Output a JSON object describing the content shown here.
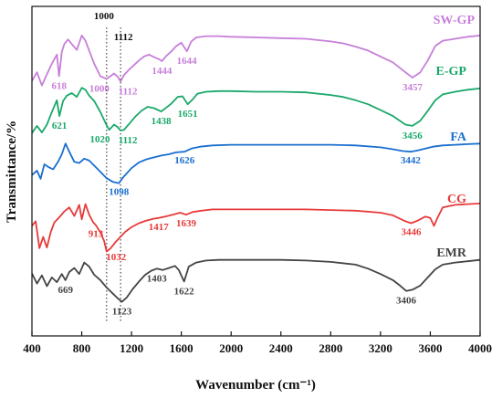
{
  "chart_data": {
    "type": "line",
    "xlabel": "Wavenumber (cm⁻¹)",
    "ylabel": "Transmittance/%",
    "xlim": [
      400,
      4000
    ],
    "xticks": [
      "400",
      "800",
      "1200",
      "1600",
      "2000",
      "2400",
      "2800",
      "3200",
      "3600",
      "4000"
    ],
    "grid": false,
    "reference_lines": [
      {
        "x": 1000,
        "label": "1000"
      },
      {
        "x": 1112,
        "label": "1112"
      }
    ],
    "series": [
      {
        "name": "SW-GP",
        "color": "#c77fd8",
        "x": [
          400,
          440,
          480,
          520,
          560,
          600,
          618,
          640,
          660,
          690,
          720,
          760,
          800,
          830,
          860,
          900,
          950,
          1000,
          1030,
          1060,
          1090,
          1112,
          1140,
          1180,
          1220,
          1260,
          1300,
          1340,
          1380,
          1420,
          1444,
          1480,
          1520,
          1560,
          1600,
          1644,
          1680,
          1720,
          1800,
          1900,
          2000,
          2200,
          2400,
          2600,
          2800,
          2900,
          3000,
          3100,
          3200,
          3300,
          3400,
          3457,
          3520,
          3580,
          3640,
          3700,
          3800,
          3900,
          4000
        ],
        "y": [
          0.2,
          1.5,
          -0.5,
          1.2,
          2.8,
          4.2,
          0.9,
          4.6,
          5.8,
          6.5,
          5.8,
          4.9,
          7.1,
          6.3,
          4.8,
          2.8,
          0.9,
          0.5,
          0.9,
          1.3,
          0.8,
          0.1,
          1.1,
          1.9,
          2.6,
          3.3,
          3.9,
          4.2,
          3.8,
          3.5,
          3.2,
          4.0,
          4.7,
          5.5,
          6.0,
          4.7,
          6.2,
          6.8,
          7.0,
          7.0,
          6.9,
          6.8,
          6.7,
          6.6,
          6.2,
          5.9,
          5.4,
          4.8,
          3.9,
          3.0,
          1.5,
          0.7,
          1.5,
          3.3,
          5.5,
          6.3,
          6.6,
          6.9,
          7.1
        ]
      },
      {
        "name": "E-GP",
        "color": "#1aa86a",
        "x": [
          400,
          440,
          480,
          520,
          560,
          600,
          621,
          650,
          680,
          720,
          760,
          800,
          830,
          860,
          900,
          950,
          1000,
          1020,
          1060,
          1090,
          1112,
          1140,
          1180,
          1230,
          1280,
          1330,
          1380,
          1438,
          1480,
          1520,
          1570,
          1610,
          1651,
          1690,
          1730,
          1800,
          1900,
          2000,
          2200,
          2400,
          2600,
          2800,
          2900,
          3000,
          3100,
          3200,
          3300,
          3400,
          3456,
          3520,
          3580,
          3640,
          3700,
          3800,
          3900,
          4000
        ],
        "y": [
          0.3,
          1.4,
          0.4,
          1.6,
          3.5,
          5.3,
          2.9,
          5.2,
          6.0,
          6.4,
          5.8,
          7.2,
          6.9,
          6.0,
          5.2,
          3.5,
          1.5,
          0.8,
          1.6,
          1.2,
          0.7,
          0.8,
          1.7,
          2.8,
          3.7,
          4.3,
          4.1,
          3.6,
          4.2,
          4.8,
          5.8,
          5.9,
          4.7,
          5.4,
          6.3,
          6.6,
          6.7,
          6.7,
          6.6,
          6.6,
          6.5,
          6.1,
          5.8,
          5.3,
          4.7,
          3.8,
          2.9,
          1.6,
          1.4,
          2.2,
          3.7,
          5.3,
          6.2,
          6.6,
          6.9,
          7.1
        ]
      },
      {
        "name": "FA",
        "color": "#1a6fd0",
        "x": [
          400,
          440,
          470,
          500,
          530,
          570,
          610,
          640,
          670,
          700,
          740,
          780,
          820,
          860,
          900,
          950,
          1000,
          1050,
          1098,
          1140,
          1200,
          1260,
          1320,
          1380,
          1440,
          1500,
          1560,
          1626,
          1680,
          1750,
          1850,
          2000,
          2200,
          2400,
          2600,
          2800,
          3000,
          3200,
          3300,
          3380,
          3442,
          3500,
          3560,
          3620,
          3700,
          3800,
          3900,
          4000
        ],
        "y": [
          2.5,
          3.2,
          1.9,
          4.2,
          3.8,
          3.4,
          4.6,
          5.8,
          7.5,
          6.2,
          4.6,
          4.4,
          5.1,
          4.8,
          4.0,
          3.0,
          2.0,
          1.4,
          1.2,
          2.3,
          3.6,
          4.5,
          5.0,
          5.3,
          5.6,
          5.8,
          6.1,
          6.2,
          6.7,
          7.0,
          7.2,
          7.3,
          7.3,
          7.3,
          7.3,
          7.3,
          7.2,
          6.9,
          6.6,
          6.3,
          6.2,
          6.4,
          6.7,
          7.0,
          7.2,
          7.3,
          7.4,
          7.5
        ]
      },
      {
        "name": "CG",
        "color": "#e83a3a",
        "x": [
          400,
          430,
          460,
          490,
          520,
          550,
          580,
          620,
          660,
          700,
          740,
          780,
          800,
          830,
          860,
          890,
          913,
          950,
          980,
          1000,
          1032,
          1070,
          1110,
          1150,
          1200,
          1260,
          1320,
          1380,
          1417,
          1470,
          1530,
          1590,
          1639,
          1690,
          1760,
          1850,
          2000,
          2200,
          2400,
          2600,
          2800,
          3000,
          3200,
          3300,
          3400,
          3446,
          3500,
          3560,
          3600,
          3630,
          3660,
          3700,
          3800,
          3900,
          4000
        ],
        "y": [
          5.5,
          6.2,
          2.1,
          3.8,
          2.2,
          4.5,
          6.0,
          6.8,
          7.7,
          8.3,
          7.0,
          8.7,
          6.5,
          8.8,
          7.2,
          6.1,
          5.6,
          4.5,
          3.2,
          1.6,
          2.1,
          3.0,
          3.8,
          4.6,
          5.3,
          5.9,
          6.3,
          6.6,
          6.7,
          6.9,
          7.2,
          7.5,
          7.2,
          7.6,
          7.8,
          8.0,
          8.0,
          8.0,
          8.0,
          8.0,
          7.9,
          7.8,
          7.5,
          7.1,
          6.2,
          5.9,
          6.3,
          6.9,
          6.7,
          5.5,
          6.8,
          8.3,
          8.7,
          8.8,
          8.9
        ]
      },
      {
        "name": "EMR",
        "color": "#444444",
        "x": [
          400,
          440,
          480,
          520,
          560,
          600,
          640,
          669,
          700,
          740,
          780,
          820,
          860,
          900,
          950,
          1000,
          1050,
          1090,
          1123,
          1160,
          1210,
          1260,
          1310,
          1360,
          1403,
          1450,
          1500,
          1550,
          1580,
          1622,
          1660,
          1720,
          1800,
          1900,
          2000,
          2200,
          2400,
          2600,
          2800,
          3000,
          3100,
          3200,
          3300,
          3350,
          3406,
          3460,
          3520,
          3580,
          3640,
          3700,
          3800,
          3900,
          4000
        ],
        "y": [
          4.8,
          3.3,
          4.5,
          2.9,
          4.2,
          3.5,
          4.7,
          3.8,
          5.0,
          5.6,
          4.7,
          6.4,
          5.8,
          4.6,
          3.8,
          2.7,
          1.8,
          1.1,
          0.6,
          1.2,
          2.5,
          3.6,
          4.6,
          5.2,
          5.5,
          5.3,
          5.6,
          5.9,
          5.3,
          3.6,
          5.8,
          6.4,
          6.7,
          6.8,
          6.8,
          6.8,
          6.8,
          6.7,
          6.5,
          6.1,
          5.5,
          4.7,
          3.8,
          3.1,
          2.2,
          2.4,
          3.0,
          4.2,
          5.4,
          6.1,
          6.4,
          6.6,
          6.8
        ]
      }
    ],
    "peak_labels": [
      {
        "series": "SW-GP",
        "text": "618",
        "x": 618
      },
      {
        "series": "SW-GP",
        "text": "1000",
        "x": 1000
      },
      {
        "series": "SW-GP",
        "text": "1112",
        "x": 1112
      },
      {
        "series": "SW-GP",
        "text": "1444",
        "x": 1444
      },
      {
        "series": "SW-GP",
        "text": "1644",
        "x": 1644
      },
      {
        "series": "SW-GP",
        "text": "3457",
        "x": 3457
      },
      {
        "series": "E-GP",
        "text": "621",
        "x": 621
      },
      {
        "series": "E-GP",
        "text": "1020",
        "x": 1020
      },
      {
        "series": "E-GP",
        "text": "1112",
        "x": 1112
      },
      {
        "series": "E-GP",
        "text": "1438",
        "x": 1438
      },
      {
        "series": "E-GP",
        "text": "1651",
        "x": 1651
      },
      {
        "series": "E-GP",
        "text": "3456",
        "x": 3456
      },
      {
        "series": "FA",
        "text": "1098",
        "x": 1098
      },
      {
        "series": "FA",
        "text": "1626",
        "x": 1626
      },
      {
        "series": "FA",
        "text": "3442",
        "x": 3442
      },
      {
        "series": "CG",
        "text": "913",
        "x": 913
      },
      {
        "series": "CG",
        "text": "1032",
        "x": 1032
      },
      {
        "series": "CG",
        "text": "1417",
        "x": 1417
      },
      {
        "series": "CG",
        "text": "1639",
        "x": 1639
      },
      {
        "series": "CG",
        "text": "3446",
        "x": 3446
      },
      {
        "series": "EMR",
        "text": "669",
        "x": 669
      },
      {
        "series": "EMR",
        "text": "1123",
        "x": 1123
      },
      {
        "series": "EMR",
        "text": "1403",
        "x": 1403
      },
      {
        "series": "EMR",
        "text": "1622",
        "x": 1622
      },
      {
        "series": "EMR",
        "text": "3406",
        "x": 3406
      }
    ]
  }
}
